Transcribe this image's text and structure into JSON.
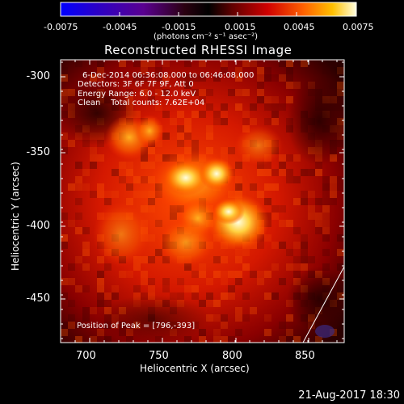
{
  "title": "Reconstructed RHESSI Image",
  "colorbar": {
    "ticks": [
      "-0.0075",
      "-0.0045",
      "-0.0015",
      "0.0015",
      "0.0045",
      "0.0075"
    ],
    "units": "(photons cm⁻² s⁻¹ asec⁻²)",
    "range": [
      -0.0075,
      0.0075
    ]
  },
  "info": {
    "time_range": "6-Dec-2014 06:36:08.000 to 06:46:08.000",
    "detectors": "Detectors: 3F 6F 7F 9F, Att 0",
    "energy": "Energy Range: 6.0 - 12.0 keV",
    "clean": "Clean    Total counts: 7.62E+04"
  },
  "peak_text": "Position of Peak = [796,-393]",
  "axes": {
    "xlabel": "Heliocentric X (arcsec)",
    "ylabel": "Heliocentric Y (arcsec)",
    "xticks": [
      "700",
      "750",
      "800",
      "850"
    ],
    "yticks": [
      "-300",
      "-350",
      "-400",
      "-450"
    ]
  },
  "footer_date": "21-Aug-2017 18:30",
  "colors": {
    "background": "#000000",
    "foreground": "#ffffff"
  }
}
